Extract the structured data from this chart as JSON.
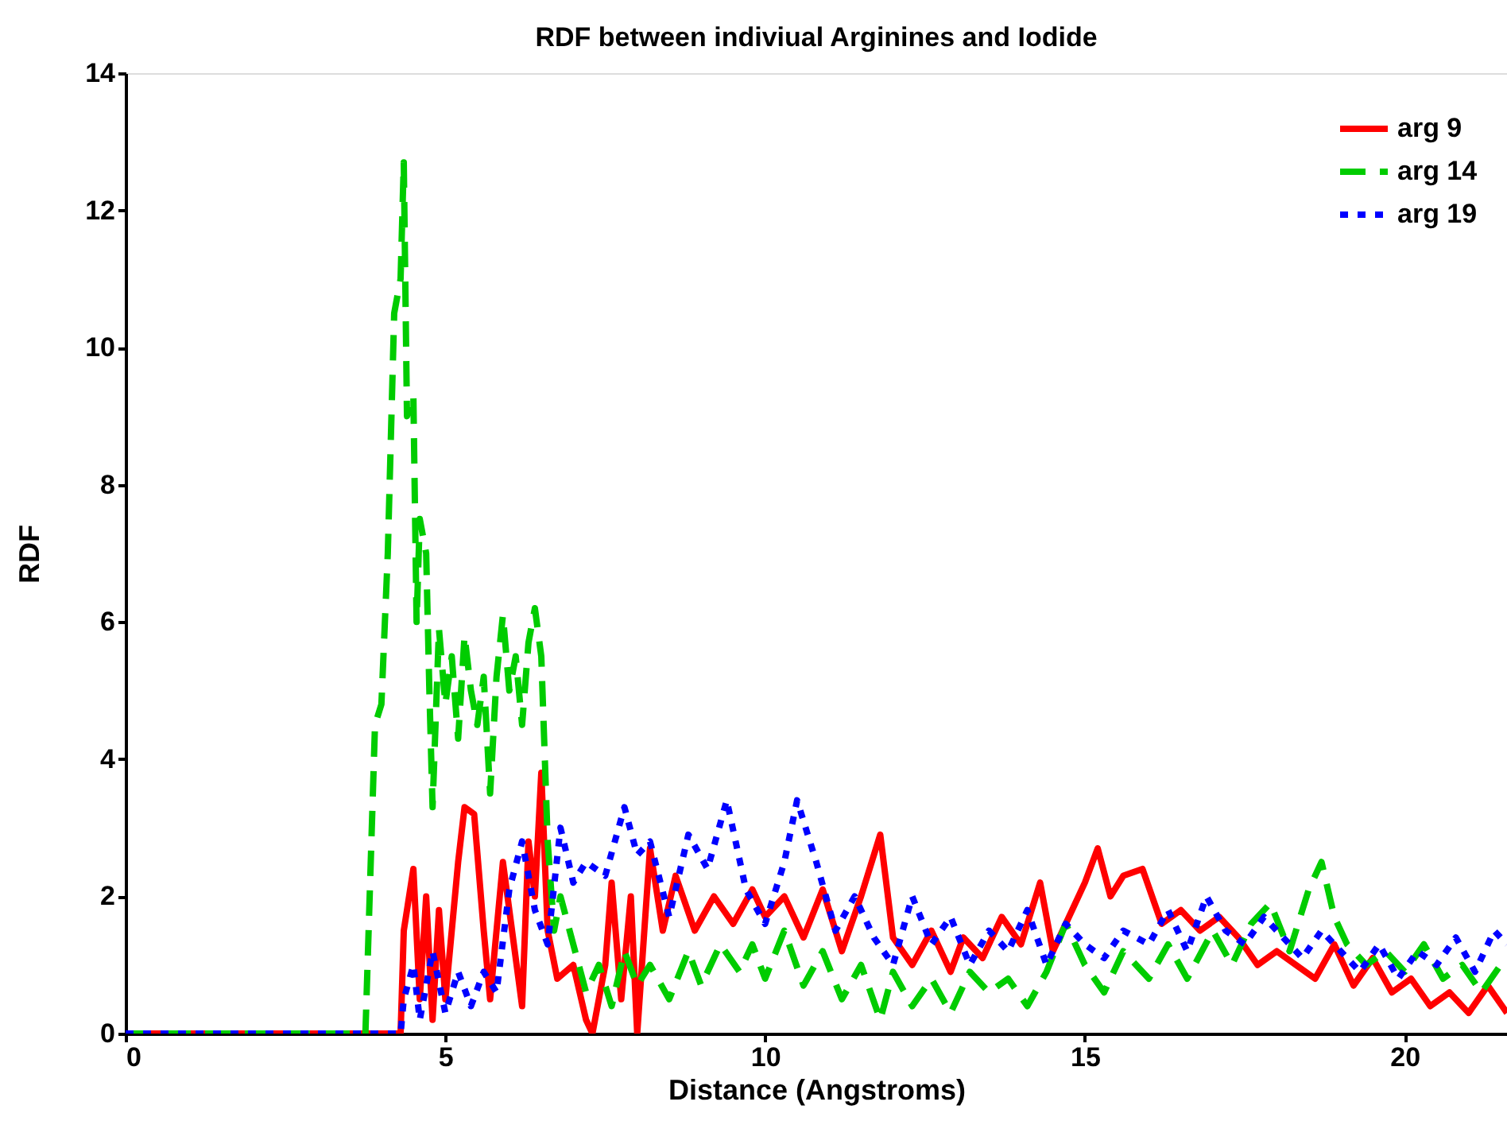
{
  "chart_data": {
    "type": "line",
    "title": "RDF between indiviual Arginines and Iodide",
    "xlabel": "Distance (Angstroms)",
    "ylabel": "RDF",
    "xlim": [
      0,
      21.6
    ],
    "xticks": [
      0,
      5,
      10,
      15,
      20
    ],
    "ylim": [
      0,
      14
    ],
    "yticks": [
      0,
      2,
      4,
      6,
      8,
      10,
      12,
      14
    ],
    "grid": false,
    "legend": "top right",
    "series": [
      {
        "name": "arg 9",
        "color": "#ff0000",
        "line_style": "solid",
        "x": [
          0,
          1,
          2,
          3,
          4,
          4.3,
          4.35,
          4.5,
          4.6,
          4.7,
          4.8,
          4.9,
          5.0,
          5.1,
          5.2,
          5.3,
          5.45,
          5.6,
          5.7,
          5.9,
          6.0,
          6.2,
          6.3,
          6.4,
          6.5,
          6.6,
          6.75,
          7.0,
          7.2,
          7.3,
          7.5,
          7.6,
          7.75,
          7.9,
          8.0,
          8.2,
          8.4,
          8.6,
          8.9,
          9.2,
          9.5,
          9.8,
          10.0,
          10.3,
          10.6,
          10.9,
          11.2,
          11.5,
          11.8,
          12.0,
          12.3,
          12.6,
          12.9,
          13.1,
          13.4,
          13.7,
          14.0,
          14.3,
          14.5,
          14.8,
          15.0,
          15.2,
          15.4,
          15.6,
          15.9,
          16.2,
          16.5,
          16.8,
          17.1,
          17.4,
          17.7,
          18.0,
          18.3,
          18.6,
          18.9,
          19.2,
          19.5,
          19.8,
          20.1,
          20.4,
          20.7,
          21.0,
          21.3,
          21.6
        ],
        "values": [
          0,
          0,
          0,
          0,
          0,
          0,
          1.5,
          2.4,
          0.5,
          2.0,
          0.2,
          1.8,
          0.5,
          1.5,
          2.5,
          3.3,
          3.2,
          1.5,
          0.5,
          2.5,
          1.8,
          0.4,
          2.8,
          2.0,
          3.8,
          1.5,
          0.8,
          1.0,
          0.2,
          0,
          1.0,
          2.2,
          0.5,
          2.0,
          0,
          2.7,
          1.5,
          2.3,
          1.5,
          2.0,
          1.6,
          2.1,
          1.7,
          2.0,
          1.4,
          2.1,
          1.2,
          2.0,
          2.9,
          1.4,
          1.0,
          1.5,
          0.9,
          1.4,
          1.1,
          1.7,
          1.3,
          2.2,
          1.2,
          1.8,
          2.2,
          2.7,
          2.0,
          2.3,
          2.4,
          1.6,
          1.8,
          1.5,
          1.7,
          1.4,
          1.0,
          1.2,
          1.0,
          0.8,
          1.3,
          0.7,
          1.1,
          0.6,
          0.8,
          0.4,
          0.6,
          0.3,
          0.7,
          0.3
        ]
      },
      {
        "name": "arg 14",
        "color": "#00cc00",
        "line_style": "dashed",
        "x": [
          0,
          1,
          2,
          3,
          3.75,
          3.9,
          4.0,
          4.1,
          4.2,
          4.3,
          4.35,
          4.4,
          4.5,
          4.55,
          4.6,
          4.7,
          4.75,
          4.8,
          4.9,
          5.0,
          5.1,
          5.2,
          5.3,
          5.4,
          5.5,
          5.6,
          5.7,
          5.8,
          5.9,
          6.0,
          6.1,
          6.2,
          6.3,
          6.4,
          6.5,
          6.6,
          6.7,
          6.8,
          7.0,
          7.2,
          7.4,
          7.6,
          7.8,
          8.0,
          8.2,
          8.5,
          8.8,
          9.0,
          9.3,
          9.6,
          9.8,
          10.0,
          10.3,
          10.6,
          10.9,
          11.2,
          11.5,
          11.8,
          12.0,
          12.3,
          12.6,
          12.9,
          13.2,
          13.5,
          13.8,
          14.1,
          14.4,
          14.7,
          15.0,
          15.3,
          15.6,
          16.0,
          16.3,
          16.6,
          17.0,
          17.3,
          17.6,
          17.9,
          18.2,
          18.5,
          18.7,
          18.9,
          19.1,
          19.4,
          19.7,
          20.0,
          20.3,
          20.6,
          20.9,
          21.2,
          21.5
        ],
        "values": [
          0,
          0,
          0,
          0,
          0,
          4.5,
          4.8,
          7,
          10.5,
          11,
          12.7,
          9,
          9.3,
          6,
          7.5,
          7,
          5,
          3.3,
          5.9,
          4.8,
          5.5,
          4.3,
          5.8,
          5,
          4.5,
          5.2,
          3.5,
          5.2,
          6.1,
          5.0,
          5.5,
          4.5,
          5.7,
          6.2,
          5.5,
          2.8,
          1.5,
          2.0,
          1.3,
          0.6,
          1.0,
          0.4,
          1.2,
          0.7,
          1.0,
          0.5,
          1.2,
          0.7,
          1.3,
          0.9,
          1.3,
          0.8,
          1.5,
          0.7,
          1.2,
          0.5,
          1.0,
          0.2,
          0.9,
          0.4,
          0.8,
          0.3,
          0.9,
          0.6,
          0.8,
          0.4,
          0.9,
          1.6,
          1.0,
          0.6,
          1.2,
          0.8,
          1.3,
          0.8,
          1.5,
          1.0,
          1.6,
          1.9,
          1.2,
          2.1,
          2.5,
          1.7,
          1.3,
          1.0,
          1.2,
          0.9,
          1.3,
          0.8,
          1.0,
          0.6,
          1.0
        ]
      },
      {
        "name": "arg 19",
        "color": "#0000ff",
        "line_style": "dotted",
        "x": [
          0,
          1,
          2,
          3,
          4,
          4.3,
          4.35,
          4.5,
          4.6,
          4.8,
          5.0,
          5.2,
          5.4,
          5.6,
          5.8,
          6.0,
          6.2,
          6.4,
          6.6,
          6.8,
          7.0,
          7.2,
          7.5,
          7.8,
          8.0,
          8.2,
          8.5,
          8.8,
          9.1,
          9.4,
          9.7,
          10.0,
          10.3,
          10.5,
          10.8,
          11.1,
          11.4,
          11.7,
          12.0,
          12.3,
          12.6,
          12.9,
          13.2,
          13.5,
          13.8,
          14.1,
          14.4,
          14.7,
          15.0,
          15.3,
          15.6,
          16.0,
          16.3,
          16.6,
          16.9,
          17.2,
          17.5,
          17.8,
          18.1,
          18.4,
          18.7,
          19.0,
          19.3,
          19.6,
          19.9,
          20.2,
          20.5,
          20.8,
          21.1,
          21.4,
          21.6
        ],
        "values": [
          0,
          0,
          0,
          0,
          0,
          0,
          0.5,
          1.0,
          0.2,
          1.2,
          0.3,
          0.9,
          0.4,
          0.9,
          0.6,
          2.1,
          2.8,
          1.8,
          1.3,
          3.0,
          2.2,
          2.5,
          2.3,
          3.3,
          2.6,
          2.8,
          1.7,
          2.9,
          2.4,
          3.4,
          2.1,
          1.6,
          2.5,
          3.4,
          2.5,
          1.5,
          2.0,
          1.4,
          1.0,
          2.0,
          1.3,
          1.7,
          1.0,
          1.5,
          1.2,
          1.8,
          1.0,
          1.6,
          1.3,
          1.1,
          1.5,
          1.3,
          1.8,
          1.2,
          2.0,
          1.5,
          1.3,
          1.7,
          1.4,
          1.1,
          1.5,
          1.2,
          0.9,
          1.3,
          0.8,
          1.2,
          1.0,
          1.4,
          0.9,
          1.5,
          1.3
        ]
      }
    ]
  }
}
